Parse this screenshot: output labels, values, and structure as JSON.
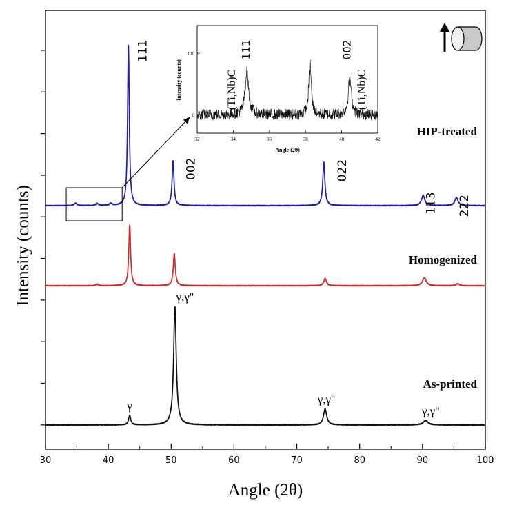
{
  "chart_data": {
    "type": "line",
    "xlabel": "Angle (2θ)",
    "ylabel": "Intensity (counts)",
    "xlim": [
      30,
      100
    ],
    "x_ticks": [
      "30",
      "40",
      "50",
      "60",
      "70",
      "80",
      "90",
      "100"
    ],
    "x_tick_values": [
      30,
      40,
      50,
      60,
      70,
      80,
      90,
      100
    ],
    "y_units": "arbitrary (stacked, offset traces)",
    "y_ticks_labeled": false,
    "series": [
      {
        "name": "HIP-treated",
        "label": "HIP-treated",
        "color": "#1f1fa8",
        "baseline": 0,
        "peaks": [
          {
            "x": 34.8,
            "height": 1.5,
            "width": 0.25,
            "label": ""
          },
          {
            "x": 38.2,
            "height": 1.5,
            "width": 0.2,
            "label": ""
          },
          {
            "x": 40.4,
            "height": 1.3,
            "width": 0.25,
            "label": ""
          },
          {
            "x": 43.2,
            "height": 100,
            "width": 0.16,
            "label": "111"
          },
          {
            "x": 50.3,
            "height": 28,
            "width": 0.18,
            "label": "002"
          },
          {
            "x": 74.3,
            "height": 27,
            "width": 0.2,
            "label": "022"
          },
          {
            "x": 90.1,
            "height": 6.5,
            "width": 0.3,
            "label": "113"
          },
          {
            "x": 95.4,
            "height": 5,
            "width": 0.3,
            "label": "222"
          }
        ]
      },
      {
        "name": "Homogenized",
        "label": "Homogenized",
        "color": "#d42a2a",
        "baseline": -50,
        "peaks": [
          {
            "x": 38.2,
            "height": 1.0,
            "width": 0.2,
            "label": ""
          },
          {
            "x": 43.4,
            "height": 38,
            "width": 0.17,
            "label": ""
          },
          {
            "x": 50.5,
            "height": 20,
            "width": 0.19,
            "label": ""
          },
          {
            "x": 74.5,
            "height": 4.5,
            "width": 0.25,
            "label": ""
          },
          {
            "x": 90.3,
            "height": 5,
            "width": 0.35,
            "label": ""
          },
          {
            "x": 95.6,
            "height": 1.2,
            "width": 0.3,
            "label": ""
          }
        ]
      },
      {
        "name": "As-printed",
        "label": "As-printed",
        "color": "#111111",
        "baseline": -137,
        "peaks": [
          {
            "x": 43.4,
            "height": 6,
            "width": 0.2,
            "label": "γ"
          },
          {
            "x": 50.6,
            "height": 74,
            "width": 0.25,
            "label": "γ,γ''"
          },
          {
            "x": 74.5,
            "height": 10,
            "width": 0.3,
            "label": "γ,γ''"
          },
          {
            "x": 90.5,
            "height": 2.8,
            "width": 0.45,
            "label": "γ,γ''"
          }
        ]
      }
    ],
    "peak_labels": [
      {
        "text": "111",
        "x": 45.5,
        "series": "HIP-treated",
        "rotated": true
      },
      {
        "text": "002",
        "x": 53.2,
        "series": "HIP-treated",
        "rotated": true
      },
      {
        "text": "022",
        "x": 77.3,
        "series": "HIP-treated",
        "rotated": true
      },
      {
        "text": "113",
        "x": 91.4,
        "series": "HIP-treated",
        "rotated": true
      },
      {
        "text": "222",
        "x": 96.7,
        "series": "HIP-treated",
        "rotated": true
      },
      {
        "text": "γ",
        "x": 43.4,
        "series": "As-printed",
        "rotated": false
      },
      {
        "text": "γ,γ''",
        "x": 52.2,
        "series": "As-printed",
        "rotated": false
      },
      {
        "text": "γ,γ''",
        "x": 74.7,
        "series": "As-printed",
        "rotated": false
      },
      {
        "text": "γ,γ''",
        "x": 91.3,
        "series": "As-printed",
        "rotated": false
      }
    ],
    "zoom_box": {
      "series": "HIP-treated",
      "xlim": [
        33.3,
        42.2
      ]
    },
    "inset": {
      "title": "",
      "xlabel": "Angle (2θ)",
      "ylabel": "Intensity (counts)",
      "xlim": [
        32,
        42
      ],
      "ylim": [
        -30,
        145
      ],
      "x_ticks": [
        "32",
        "34",
        "36",
        "38",
        "40",
        "42"
      ],
      "x_tick_values": [
        32,
        34,
        36,
        38,
        40,
        42
      ],
      "y_ticks": [
        "0",
        "100"
      ],
      "y_tick_values": [
        0,
        100
      ],
      "peaks": [
        {
          "x": 34.75,
          "height": 70,
          "width": 0.12
        },
        {
          "x": 38.25,
          "height": 85,
          "width": 0.08
        },
        {
          "x": 40.45,
          "height": 60,
          "width": 0.1
        }
      ],
      "noise_amplitude": 9,
      "annotations": [
        {
          "text": "(Ti,Nb)C",
          "x": 34.1,
          "rotated": true
        },
        {
          "text": "111",
          "x": 34.9,
          "rotated": true
        },
        {
          "text": "002",
          "x": 40.5,
          "rotated": true
        },
        {
          "text": "(Ti,Nb)C",
          "x": 41.3,
          "rotated": true
        }
      ]
    }
  },
  "icons": {
    "build_direction": "up-arrow-with-cylinder-icon"
  }
}
